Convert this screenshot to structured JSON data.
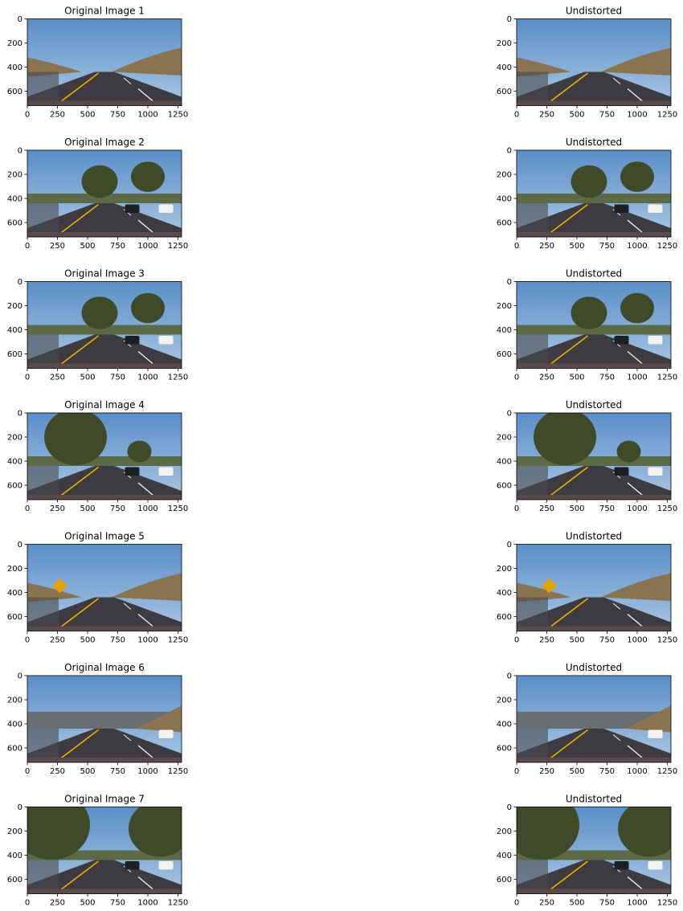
{
  "figure": {
    "rows": [
      {
        "left_title": "Original Image 1",
        "right_title": "Undistorted",
        "scene": "hills",
        "cars": []
      },
      {
        "left_title": "Original Image 2",
        "right_title": "Undistorted",
        "scene": "trees",
        "cars": [
          "dark",
          "white"
        ]
      },
      {
        "left_title": "Original Image 3",
        "right_title": "Undistorted",
        "scene": "trees",
        "cars": [
          "dark",
          "white"
        ]
      },
      {
        "left_title": "Original Image 4",
        "right_title": "Undistorted",
        "scene": "bigtree",
        "cars": [
          "dark",
          "white"
        ]
      },
      {
        "left_title": "Original Image 5",
        "right_title": "Undistorted",
        "scene": "sign",
        "cars": []
      },
      {
        "left_title": "Original Image 6",
        "right_title": "Undistorted",
        "scene": "open",
        "cars": [
          "white"
        ]
      },
      {
        "left_title": "Original Image 7",
        "right_title": "Undistorted",
        "scene": "forest",
        "cars": [
          "dark",
          "white"
        ]
      }
    ],
    "colors": {
      "sky": "#5b8fc9",
      "sky_horizon": "#a9c6e2",
      "road": "#3d3b40",
      "hill": "#8a7350",
      "tree": "#3f4a28",
      "lane_yellow": "#e8b400",
      "lane_white": "#f0f0f0",
      "hood": "#5a4a4c",
      "sign": "#e4a400"
    }
  },
  "chart_data": {
    "type": "image",
    "panels": 14,
    "x_ticks": [
      0,
      250,
      500,
      750,
      1000,
      1250
    ],
    "y_ticks": [
      0,
      200,
      400,
      600
    ],
    "xlim": [
      0,
      1280
    ],
    "ylim": [
      720,
      0
    ]
  }
}
